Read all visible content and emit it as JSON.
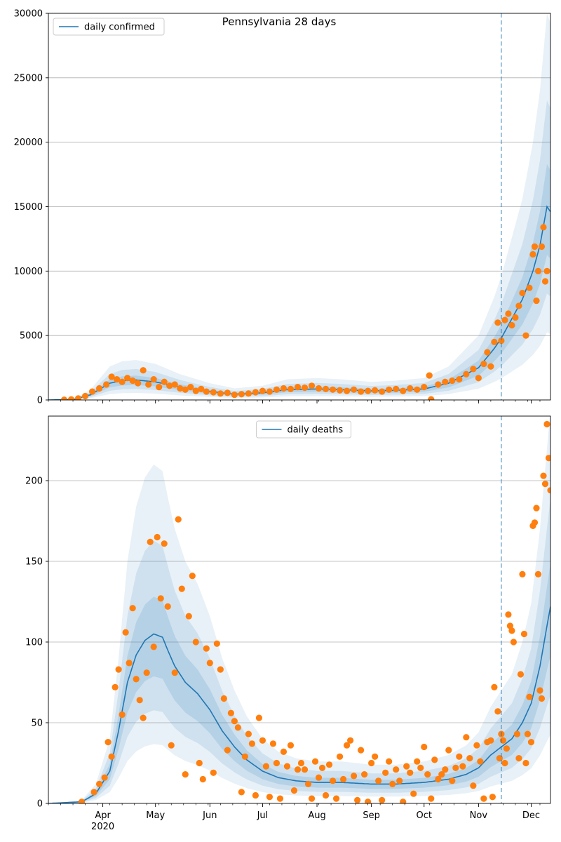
{
  "figure_title": "Pennsylvania 28 days",
  "colors": {
    "model": "#1f77b4",
    "observed": "#ff7f0e",
    "band": "#1f77b4",
    "grid": "#b0b0b0"
  },
  "x_axis": {
    "month_labels": [
      "Apr",
      "May",
      "Jun",
      "Jul",
      "Aug",
      "Sep",
      "Oct",
      "Nov",
      "Dec"
    ],
    "year_label": "2020"
  },
  "chart_data": [
    {
      "type": "line",
      "legend": "daily confirmed",
      "legend_position": "top-left",
      "x_range": [
        "2020-03-01",
        "2020-12-12"
      ],
      "ylim": [
        0,
        30000
      ],
      "yticks": [
        0,
        5000,
        10000,
        15000,
        20000,
        25000,
        30000
      ],
      "grid": "horizontal",
      "forecast_start": "2020-11-14",
      "model_curve": [
        [
          "2020-03-01",
          0
        ],
        [
          "2020-03-15",
          30
        ],
        [
          "2020-03-25",
          400
        ],
        [
          "2020-04-05",
          1300
        ],
        [
          "2020-04-12",
          1500
        ],
        [
          "2020-04-20",
          1550
        ],
        [
          "2020-05-01",
          1400
        ],
        [
          "2020-05-15",
          1000
        ],
        [
          "2020-06-01",
          650
        ],
        [
          "2020-06-15",
          450
        ],
        [
          "2020-07-01",
          550
        ],
        [
          "2020-07-15",
          800
        ],
        [
          "2020-08-01",
          850
        ],
        [
          "2020-08-15",
          800
        ],
        [
          "2020-09-01",
          700
        ],
        [
          "2020-09-15",
          750
        ],
        [
          "2020-10-01",
          850
        ],
        [
          "2020-10-15",
          1300
        ],
        [
          "2020-11-01",
          2500
        ],
        [
          "2020-11-10",
          4000
        ],
        [
          "2020-11-14",
          4800
        ],
        [
          "2020-11-20",
          6300
        ],
        [
          "2020-11-26",
          7800
        ],
        [
          "2020-12-02",
          10000
        ],
        [
          "2020-12-06",
          12000
        ],
        [
          "2020-12-10",
          15000
        ],
        [
          "2020-12-12",
          14600
        ]
      ],
      "observed": [
        [
          "2020-03-10",
          15
        ],
        [
          "2020-03-14",
          40
        ],
        [
          "2020-03-18",
          120
        ],
        [
          "2020-03-22",
          300
        ],
        [
          "2020-03-26",
          650
        ],
        [
          "2020-03-30",
          900
        ],
        [
          "2020-04-03",
          1200
        ],
        [
          "2020-04-06",
          1800
        ],
        [
          "2020-04-09",
          1600
        ],
        [
          "2020-04-12",
          1400
        ],
        [
          "2020-04-15",
          1700
        ],
        [
          "2020-04-18",
          1500
        ],
        [
          "2020-04-21",
          1300
        ],
        [
          "2020-04-24",
          2300
        ],
        [
          "2020-04-27",
          1200
        ],
        [
          "2020-04-30",
          1600
        ],
        [
          "2020-05-03",
          1000
        ],
        [
          "2020-05-06",
          1400
        ],
        [
          "2020-05-09",
          1100
        ],
        [
          "2020-05-12",
          1200
        ],
        [
          "2020-05-15",
          900
        ],
        [
          "2020-05-18",
          800
        ],
        [
          "2020-05-21",
          1000
        ],
        [
          "2020-05-24",
          700
        ],
        [
          "2020-05-27",
          850
        ],
        [
          "2020-05-30",
          650
        ],
        [
          "2020-06-03",
          600
        ],
        [
          "2020-06-07",
          500
        ],
        [
          "2020-06-11",
          550
        ],
        [
          "2020-06-15",
          400
        ],
        [
          "2020-06-19",
          450
        ],
        [
          "2020-06-23",
          500
        ],
        [
          "2020-06-27",
          600
        ],
        [
          "2020-07-01",
          700
        ],
        [
          "2020-07-05",
          650
        ],
        [
          "2020-07-09",
          800
        ],
        [
          "2020-07-13",
          900
        ],
        [
          "2020-07-17",
          850
        ],
        [
          "2020-07-21",
          1000
        ],
        [
          "2020-07-25",
          950
        ],
        [
          "2020-07-29",
          1100
        ],
        [
          "2020-08-02",
          900
        ],
        [
          "2020-08-06",
          850
        ],
        [
          "2020-08-10",
          800
        ],
        [
          "2020-08-14",
          750
        ],
        [
          "2020-08-18",
          700
        ],
        [
          "2020-08-22",
          800
        ],
        [
          "2020-08-26",
          650
        ],
        [
          "2020-08-30",
          700
        ],
        [
          "2020-09-03",
          750
        ],
        [
          "2020-09-07",
          650
        ],
        [
          "2020-09-11",
          800
        ],
        [
          "2020-09-15",
          850
        ],
        [
          "2020-09-19",
          700
        ],
        [
          "2020-09-23",
          900
        ],
        [
          "2020-09-27",
          800
        ],
        [
          "2020-10-01",
          1000
        ],
        [
          "2020-10-04",
          1900
        ],
        [
          "2020-10-05",
          50
        ],
        [
          "2020-10-09",
          1200
        ],
        [
          "2020-10-13",
          1400
        ],
        [
          "2020-10-17",
          1500
        ],
        [
          "2020-10-21",
          1600
        ],
        [
          "2020-10-25",
          2000
        ],
        [
          "2020-10-29",
          2400
        ],
        [
          "2020-11-01",
          1700
        ],
        [
          "2020-11-04",
          2800
        ],
        [
          "2020-11-06",
          3700
        ],
        [
          "2020-11-08",
          2600
        ],
        [
          "2020-11-10",
          4500
        ],
        [
          "2020-11-12",
          6000
        ],
        [
          "2020-11-14",
          4600
        ],
        [
          "2020-11-16",
          6200
        ],
        [
          "2020-11-18",
          6700
        ],
        [
          "2020-11-20",
          5800
        ],
        [
          "2020-11-22",
          6400
        ],
        [
          "2020-11-24",
          7300
        ],
        [
          "2020-11-26",
          8300
        ],
        [
          "2020-11-28",
          5000
        ],
        [
          "2020-11-30",
          8700
        ],
        [
          "2020-12-02",
          11300
        ],
        [
          "2020-12-03",
          11900
        ],
        [
          "2020-12-04",
          7700
        ],
        [
          "2020-12-05",
          10000
        ],
        [
          "2020-12-07",
          11900
        ],
        [
          "2020-12-08",
          13400
        ],
        [
          "2020-12-09",
          9200
        ],
        [
          "2020-12-10",
          10000
        ]
      ]
    },
    {
      "type": "line",
      "legend": "daily deaths",
      "legend_position": "top-center",
      "x_range": [
        "2020-03-01",
        "2020-12-12"
      ],
      "ylim": [
        0,
        240
      ],
      "yticks": [
        0,
        50,
        100,
        150,
        200
      ],
      "grid": "horizontal",
      "forecast_start": "2020-11-14",
      "model_curve": [
        [
          "2020-03-01",
          0
        ],
        [
          "2020-03-20",
          1
        ],
        [
          "2020-03-28",
          6
        ],
        [
          "2020-04-05",
          20
        ],
        [
          "2020-04-10",
          45
        ],
        [
          "2020-04-15",
          75
        ],
        [
          "2020-04-20",
          92
        ],
        [
          "2020-04-25",
          101
        ],
        [
          "2020-04-30",
          105
        ],
        [
          "2020-05-05",
          103
        ],
        [
          "2020-05-08",
          95
        ],
        [
          "2020-05-12",
          85
        ],
        [
          "2020-05-18",
          75
        ],
        [
          "2020-05-25",
          68
        ],
        [
          "2020-06-01",
          58
        ],
        [
          "2020-06-08",
          45
        ],
        [
          "2020-06-15",
          35
        ],
        [
          "2020-06-22",
          27
        ],
        [
          "2020-07-01",
          20
        ],
        [
          "2020-07-10",
          16
        ],
        [
          "2020-07-20",
          14
        ],
        [
          "2020-08-01",
          13
        ],
        [
          "2020-08-15",
          13
        ],
        [
          "2020-09-01",
          12
        ],
        [
          "2020-09-15",
          12
        ],
        [
          "2020-10-01",
          13
        ],
        [
          "2020-10-15",
          15
        ],
        [
          "2020-10-25",
          18
        ],
        [
          "2020-11-01",
          22
        ],
        [
          "2020-11-08",
          30
        ],
        [
          "2020-11-14",
          35
        ],
        [
          "2020-11-20",
          40
        ],
        [
          "2020-11-26",
          50
        ],
        [
          "2020-12-01",
          62
        ],
        [
          "2020-12-06",
          85
        ],
        [
          "2020-12-10",
          110
        ],
        [
          "2020-12-12",
          122
        ]
      ],
      "observed": [
        [
          "2020-03-20",
          1
        ],
        [
          "2020-03-27",
          7
        ],
        [
          "2020-03-30",
          12
        ],
        [
          "2020-04-02",
          16
        ],
        [
          "2020-04-04",
          38
        ],
        [
          "2020-04-06",
          29
        ],
        [
          "2020-04-08",
          72
        ],
        [
          "2020-04-10",
          83
        ],
        [
          "2020-04-12",
          55
        ],
        [
          "2020-04-14",
          106
        ],
        [
          "2020-04-16",
          87
        ],
        [
          "2020-04-18",
          121
        ],
        [
          "2020-04-20",
          77
        ],
        [
          "2020-04-22",
          64
        ],
        [
          "2020-04-24",
          53
        ],
        [
          "2020-04-26",
          81
        ],
        [
          "2020-04-28",
          162
        ],
        [
          "2020-04-30",
          97
        ],
        [
          "2020-05-02",
          165
        ],
        [
          "2020-05-04",
          127
        ],
        [
          "2020-05-06",
          161
        ],
        [
          "2020-05-08",
          122
        ],
        [
          "2020-05-10",
          36
        ],
        [
          "2020-05-12",
          81
        ],
        [
          "2020-05-14",
          176
        ],
        [
          "2020-05-16",
          133
        ],
        [
          "2020-05-18",
          18
        ],
        [
          "2020-05-20",
          116
        ],
        [
          "2020-05-22",
          141
        ],
        [
          "2020-05-24",
          100
        ],
        [
          "2020-05-26",
          25
        ],
        [
          "2020-05-28",
          15
        ],
        [
          "2020-05-30",
          96
        ],
        [
          "2020-06-01",
          87
        ],
        [
          "2020-06-03",
          19
        ],
        [
          "2020-06-05",
          99
        ],
        [
          "2020-06-07",
          83
        ],
        [
          "2020-06-09",
          65
        ],
        [
          "2020-06-11",
          33
        ],
        [
          "2020-06-13",
          56
        ],
        [
          "2020-06-15",
          51
        ],
        [
          "2020-06-17",
          47
        ],
        [
          "2020-06-19",
          7
        ],
        [
          "2020-06-21",
          29
        ],
        [
          "2020-06-23",
          43
        ],
        [
          "2020-06-25",
          37
        ],
        [
          "2020-06-27",
          5
        ],
        [
          "2020-06-29",
          53
        ],
        [
          "2020-07-01",
          39
        ],
        [
          "2020-07-03",
          23
        ],
        [
          "2020-07-05",
          4
        ],
        [
          "2020-07-07",
          37
        ],
        [
          "2020-07-09",
          25
        ],
        [
          "2020-07-11",
          3
        ],
        [
          "2020-07-13",
          32
        ],
        [
          "2020-07-15",
          23
        ],
        [
          "2020-07-17",
          36
        ],
        [
          "2020-07-19",
          8
        ],
        [
          "2020-07-21",
          21
        ],
        [
          "2020-07-23",
          25
        ],
        [
          "2020-07-25",
          21
        ],
        [
          "2020-07-27",
          12
        ],
        [
          "2020-07-29",
          3
        ],
        [
          "2020-07-31",
          26
        ],
        [
          "2020-08-02",
          16
        ],
        [
          "2020-08-04",
          22
        ],
        [
          "2020-08-06",
          5
        ],
        [
          "2020-08-08",
          24
        ],
        [
          "2020-08-10",
          14
        ],
        [
          "2020-08-12",
          3
        ],
        [
          "2020-08-14",
          29
        ],
        [
          "2020-08-16",
          15
        ],
        [
          "2020-08-18",
          36
        ],
        [
          "2020-08-20",
          39
        ],
        [
          "2020-08-22",
          17
        ],
        [
          "2020-08-24",
          2
        ],
        [
          "2020-08-26",
          33
        ],
        [
          "2020-08-28",
          18
        ],
        [
          "2020-08-30",
          1
        ],
        [
          "2020-09-01",
          25
        ],
        [
          "2020-09-03",
          29
        ],
        [
          "2020-09-05",
          14
        ],
        [
          "2020-09-07",
          2
        ],
        [
          "2020-09-09",
          19
        ],
        [
          "2020-09-11",
          26
        ],
        [
          "2020-09-13",
          12
        ],
        [
          "2020-09-15",
          21
        ],
        [
          "2020-09-17",
          14
        ],
        [
          "2020-09-19",
          1
        ],
        [
          "2020-09-21",
          23
        ],
        [
          "2020-09-23",
          19
        ],
        [
          "2020-09-25",
          6
        ],
        [
          "2020-09-27",
          26
        ],
        [
          "2020-09-29",
          22
        ],
        [
          "2020-10-01",
          35
        ],
        [
          "2020-10-03",
          18
        ],
        [
          "2020-10-05",
          3
        ],
        [
          "2020-10-07",
          27
        ],
        [
          "2020-10-09",
          15
        ],
        [
          "2020-10-11",
          18
        ],
        [
          "2020-10-13",
          21
        ],
        [
          "2020-10-15",
          33
        ],
        [
          "2020-10-17",
          14
        ],
        [
          "2020-10-19",
          22
        ],
        [
          "2020-10-21",
          29
        ],
        [
          "2020-10-23",
          23
        ],
        [
          "2020-10-25",
          41
        ],
        [
          "2020-10-27",
          28
        ],
        [
          "2020-10-29",
          11
        ],
        [
          "2020-10-31",
          36
        ],
        [
          "2020-11-02",
          26
        ],
        [
          "2020-11-04",
          3
        ],
        [
          "2020-11-06",
          38
        ],
        [
          "2020-11-08",
          39
        ],
        [
          "2020-11-09",
          4
        ],
        [
          "2020-11-10",
          72
        ],
        [
          "2020-11-12",
          57
        ],
        [
          "2020-11-13",
          28
        ],
        [
          "2020-11-14",
          43
        ],
        [
          "2020-11-15",
          39
        ],
        [
          "2020-11-16",
          25
        ],
        [
          "2020-11-17",
          34
        ],
        [
          "2020-11-18",
          117
        ],
        [
          "2020-11-19",
          110
        ],
        [
          "2020-11-20",
          107
        ],
        [
          "2020-11-21",
          100
        ],
        [
          "2020-11-23",
          43
        ],
        [
          "2020-11-24",
          28
        ],
        [
          "2020-11-25",
          80
        ],
        [
          "2020-11-26",
          142
        ],
        [
          "2020-11-27",
          105
        ],
        [
          "2020-11-28",
          25
        ],
        [
          "2020-11-29",
          43
        ],
        [
          "2020-11-30",
          66
        ],
        [
          "2020-12-01",
          38
        ],
        [
          "2020-12-02",
          172
        ],
        [
          "2020-12-03",
          174
        ],
        [
          "2020-12-04",
          183
        ],
        [
          "2020-12-05",
          142
        ],
        [
          "2020-12-06",
          70
        ],
        [
          "2020-12-07",
          65
        ],
        [
          "2020-12-08",
          203
        ],
        [
          "2020-12-09",
          198
        ],
        [
          "2020-12-10",
          235
        ],
        [
          "2020-12-11",
          214
        ],
        [
          "2020-12-12",
          194
        ]
      ]
    }
  ]
}
